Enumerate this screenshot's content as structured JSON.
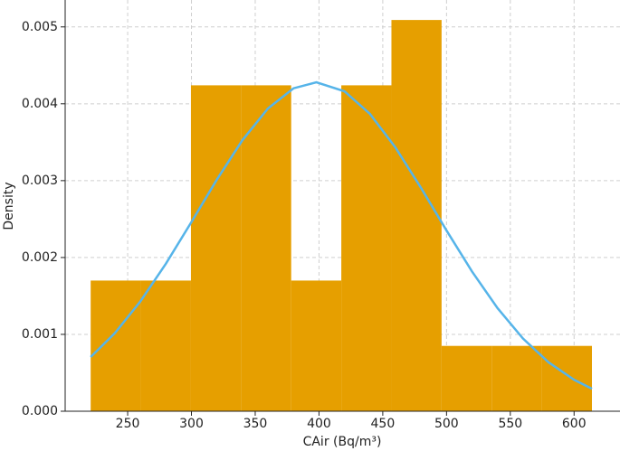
{
  "chart_data": {
    "type": "histogram",
    "x_label": "CAir (Bq/m³)",
    "y_label": "Density",
    "bins": [
      221,
      260.3,
      299.6,
      338.9,
      378.2,
      417.5,
      456.8,
      496.1,
      535.4,
      574.7,
      614
    ],
    "values": [
      0.0017,
      0.0017,
      0.00424,
      0.00424,
      0.0017,
      0.00424,
      0.00509,
      0.00085,
      0.00085,
      0.00085
    ],
    "color": "#E69F00",
    "overlay": {
      "type": "line",
      "color": "#56B4E9",
      "x": [
        221,
        240,
        260,
        280,
        300,
        320,
        340,
        360,
        380,
        398,
        420,
        440,
        460,
        480,
        500,
        520,
        540,
        560,
        580,
        600,
        614
      ],
      "values": [
        0.000705,
        0.001017,
        0.00143,
        0.00192,
        0.002462,
        0.003015,
        0.003527,
        0.003939,
        0.004201,
        0.00428,
        0.004162,
        0.003867,
        0.00343,
        0.002906,
        0.002351,
        0.001817,
        0.001341,
        0.000945,
        0.000636,
        0.000409,
        0.000292
      ]
    },
    "xlim": [
      201,
      636
    ],
    "ylim": [
      0,
      0.00535
    ],
    "xticks": [
      250,
      300,
      350,
      400,
      450,
      500,
      550,
      600
    ],
    "yticks": [
      {
        "value": 0,
        "label": "0.000"
      },
      0.001,
      0.002,
      0.003,
      0.004,
      0.005
    ],
    "grid": true
  }
}
